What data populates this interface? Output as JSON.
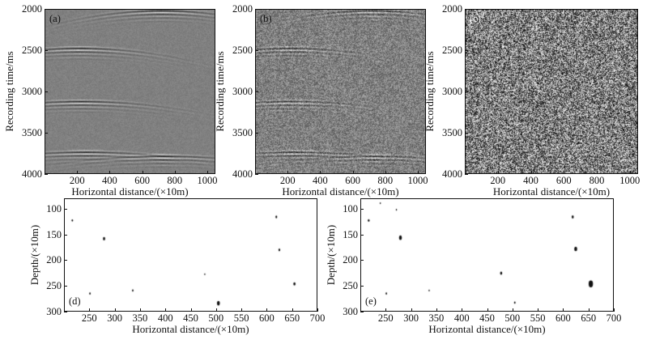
{
  "top_panels": {
    "ylabel": "Recording time/ms",
    "xlabel": "Horizontal distance/(×10m)",
    "panels": [
      {
        "label": "(a)",
        "noise": 0.08,
        "bg": "#808080"
      },
      {
        "label": "(b)",
        "noise": 0.35,
        "bg": "#7a7a7a"
      },
      {
        "label": "(c)",
        "noise": 1.0,
        "bg": "#777777"
      }
    ]
  },
  "bottom_panels": {
    "ylabel": "Depth/(×10m)",
    "xlabel": "Horizontal distance/(×10m)",
    "panels": [
      {
        "label": "(d)"
      },
      {
        "label": "(e)"
      }
    ]
  },
  "chart_data": [
    {
      "type": "heatmap",
      "panel": "(a)",
      "xlabel": "Horizontal distance/(×10m)",
      "ylabel": "Recording time/ms",
      "xlim": [
        0,
        1050
      ],
      "ylim": [
        4000,
        2000
      ],
      "x_ticks": [
        "200",
        "400",
        "600",
        "800",
        "1000"
      ],
      "y_ticks": [
        "2000",
        "2500",
        "3000",
        "3500",
        "4000"
      ],
      "events": [
        {
          "x": 210,
          "t": 2480
        },
        {
          "x": 720,
          "t": 2020
        },
        {
          "x": 220,
          "t": 3130
        },
        {
          "x": 250,
          "t": 3750
        },
        {
          "x": 730,
          "t": 3800
        }
      ]
    },
    {
      "type": "heatmap",
      "panel": "(b)",
      "xlabel": "Horizontal distance/(×10m)",
      "ylabel": "Recording time/ms",
      "xlim": [
        0,
        1050
      ],
      "ylim": [
        4000,
        2000
      ],
      "x_ticks": [
        "200",
        "400",
        "600",
        "800",
        "1000"
      ],
      "y_ticks": [
        "2000",
        "2500",
        "3000",
        "3500",
        "4000"
      ]
    },
    {
      "type": "heatmap",
      "panel": "(c)",
      "xlabel": "Horizontal distance/(×10m)",
      "ylabel": "Recording time/ms",
      "xlim": [
        0,
        1050
      ],
      "ylim": [
        4000,
        2000
      ],
      "x_ticks": [
        "200",
        "400",
        "600",
        "800",
        "1000"
      ],
      "y_ticks": [
        "2000",
        "2500",
        "3000",
        "3500",
        "4000"
      ]
    },
    {
      "type": "scatter",
      "panel": "(d)",
      "xlabel": "Horizontal distance/(×10m)",
      "ylabel": "Depth/(×10m)",
      "xlim": [
        200,
        700
      ],
      "ylim": [
        300,
        80
      ],
      "x_ticks": [
        "250",
        "300",
        "350",
        "400",
        "450",
        "500",
        "550",
        "600",
        "650",
        "700"
      ],
      "y_ticks": [
        "100",
        "150",
        "200",
        "250",
        "300"
      ],
      "points": [
        {
          "x": 215,
          "y": 122,
          "s": 1
        },
        {
          "x": 278,
          "y": 158,
          "s": 1.5
        },
        {
          "x": 250,
          "y": 266,
          "s": 1
        },
        {
          "x": 335,
          "y": 260,
          "s": 1
        },
        {
          "x": 478,
          "y": 228,
          "s": 0.8
        },
        {
          "x": 505,
          "y": 285,
          "s": 2
        },
        {
          "x": 620,
          "y": 115,
          "s": 1.2
        },
        {
          "x": 626,
          "y": 180,
          "s": 1.2
        },
        {
          "x": 656,
          "y": 247,
          "s": 1.5
        }
      ]
    },
    {
      "type": "scatter",
      "panel": "(e)",
      "xlabel": "Horizontal distance/(×10m)",
      "ylabel": "Depth/(×10m)",
      "xlim": [
        200,
        700
      ],
      "ylim": [
        300,
        80
      ],
      "x_ticks": [
        "250",
        "300",
        "350",
        "400",
        "450",
        "500",
        "550",
        "600",
        "650",
        "700"
      ],
      "y_ticks": [
        "100",
        "150",
        "200",
        "250",
        "300"
      ],
      "points": [
        {
          "x": 215,
          "y": 122,
          "s": 1.2
        },
        {
          "x": 238,
          "y": 88,
          "s": 0.8
        },
        {
          "x": 270,
          "y": 101,
          "s": 0.8
        },
        {
          "x": 278,
          "y": 156,
          "s": 2
        },
        {
          "x": 250,
          "y": 266,
          "s": 1
        },
        {
          "x": 335,
          "y": 260,
          "s": 0.8
        },
        {
          "x": 478,
          "y": 226,
          "s": 1.4
        },
        {
          "x": 505,
          "y": 284,
          "s": 1
        },
        {
          "x": 620,
          "y": 115,
          "s": 1.4
        },
        {
          "x": 626,
          "y": 178,
          "s": 2
        },
        {
          "x": 656,
          "y": 247,
          "s": 3
        }
      ]
    }
  ]
}
